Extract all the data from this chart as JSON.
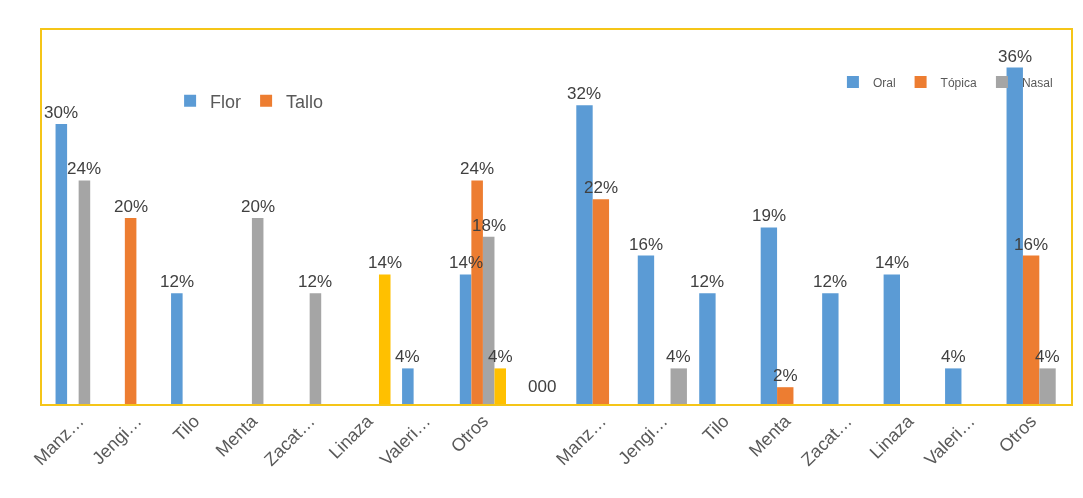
{
  "chart_data": [
    {
      "type": "bar",
      "categories": [
        "Manz…",
        "Jengi…",
        "Tilo",
        "Menta",
        "Zacat…",
        "Linaza",
        "Valeri…",
        "Otros"
      ],
      "legend": "top",
      "grid": false,
      "annotations": [
        "000"
      ],
      "series": [
        {
          "name": "Flor",
          "color": "#5b9bd5",
          "values": [
            30,
            null,
            12,
            null,
            null,
            null,
            4,
            14
          ],
          "value_labels": [
            "30%",
            null,
            "12%",
            null,
            null,
            null,
            "4%",
            "14%"
          ]
        },
        {
          "name": "Tallo",
          "color": "#ed7d31",
          "values": [
            null,
            20,
            null,
            null,
            null,
            null,
            null,
            24
          ],
          "value_labels": [
            null,
            "20%",
            null,
            null,
            null,
            null,
            null,
            "24%"
          ]
        },
        {
          "color": "#a5a5a5",
          "values": [
            24,
            null,
            null,
            20,
            12,
            null,
            null,
            18
          ],
          "value_labels": [
            "24%",
            null,
            null,
            "20%",
            "12%",
            null,
            null,
            "18%"
          ]
        },
        {
          "color": "#ffc000",
          "values": [
            null,
            null,
            null,
            null,
            null,
            14,
            null,
            4
          ],
          "value_labels": [
            null,
            null,
            null,
            null,
            null,
            "14%",
            null,
            "4%"
          ]
        }
      ]
    },
    {
      "type": "bar",
      "categories": [
        "Manz…",
        "Jengi…",
        "Tilo",
        "Menta",
        "Zacat…",
        "Linaza",
        "Valeri…",
        "Otros"
      ],
      "legend": "top right",
      "grid": false,
      "series": [
        {
          "name": "Oral",
          "color": "#5b9bd5",
          "values": [
            32,
            16,
            12,
            19,
            12,
            14,
            4,
            36
          ],
          "value_labels": [
            "32%",
            "16%",
            "12%",
            "19%",
            "12%",
            "14%",
            "4%",
            "36%"
          ]
        },
        {
          "name": "Tópica",
          "color": "#ed7d31",
          "values": [
            22,
            null,
            null,
            2,
            null,
            null,
            null,
            16
          ],
          "value_labels": [
            "22%",
            null,
            null,
            "2%",
            null,
            null,
            null,
            "16%"
          ]
        },
        {
          "name": "Nasal",
          "color": "#a5a5a5",
          "values": [
            null,
            4,
            null,
            null,
            null,
            null,
            null,
            4
          ],
          "value_labels": [
            null,
            "4%",
            null,
            null,
            null,
            null,
            null,
            "4%"
          ]
        }
      ]
    }
  ]
}
